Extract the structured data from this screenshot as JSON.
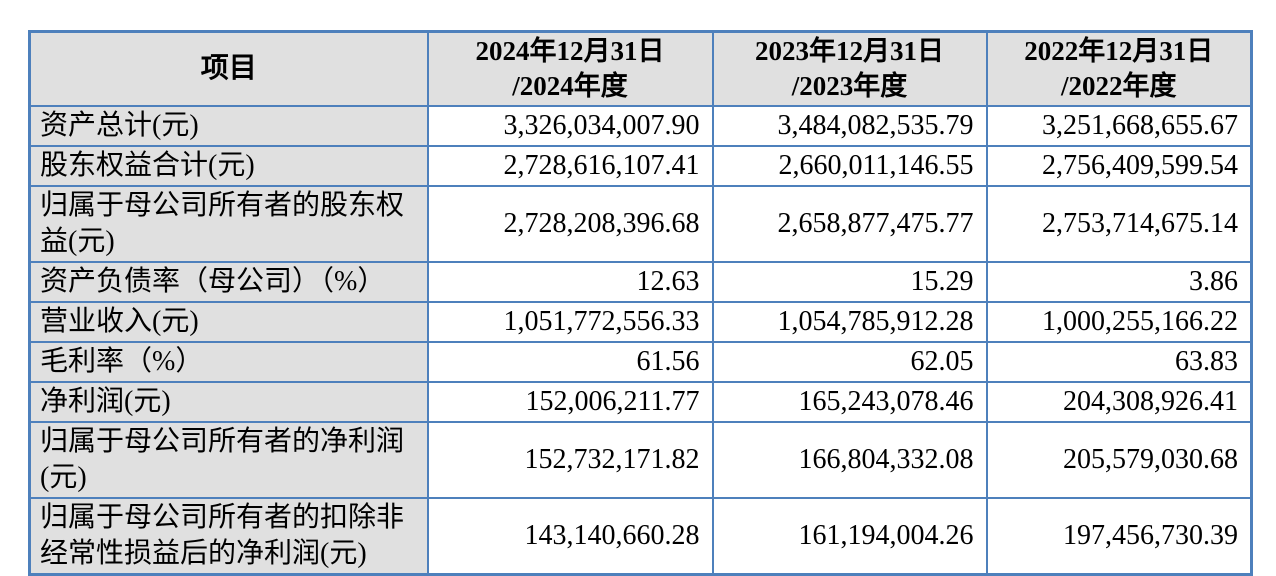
{
  "colors": {
    "table_border": "#4e80bc",
    "shaded_cell_bg": "#e0e0e0",
    "text": "#000000",
    "page_bg": "#ffffff"
  },
  "table": {
    "header": {
      "item_label": "项目",
      "periods": [
        {
          "line1": "2024年12月31日",
          "line2": "/2024年度"
        },
        {
          "line1": "2023年12月31日",
          "line2": "/2023年度"
        },
        {
          "line1": "2022年12月31日",
          "line2": "/2022年度"
        }
      ]
    },
    "rows": [
      {
        "label": "资产总计(元)",
        "values": [
          "3,326,034,007.90",
          "3,484,082,535.79",
          "3,251,668,655.67"
        ]
      },
      {
        "label": "股东权益合计(元)",
        "values": [
          "2,728,616,107.41",
          "2,660,011,146.55",
          "2,756,409,599.54"
        ]
      },
      {
        "label": "归属于母公司所有者的股东权益(元)",
        "values": [
          "2,728,208,396.68",
          "2,658,877,475.77",
          "2,753,714,675.14"
        ]
      },
      {
        "label": "资产负债率（母公司）（%）",
        "values": [
          "12.63",
          "15.29",
          "3.86"
        ]
      },
      {
        "label": "营业收入(元)",
        "values": [
          "1,051,772,556.33",
          "1,054,785,912.28",
          "1,000,255,166.22"
        ]
      },
      {
        "label": "毛利率（%）",
        "values": [
          "61.56",
          "62.05",
          "63.83"
        ]
      },
      {
        "label": "净利润(元)",
        "values": [
          "152,006,211.77",
          "165,243,078.46",
          "204,308,926.41"
        ]
      },
      {
        "label": "归属于母公司所有者的净利润(元)",
        "values": [
          "152,732,171.82",
          "166,804,332.08",
          "205,579,030.68"
        ]
      },
      {
        "label": "归属于母公司所有者的扣除非经常性损益后的净利润(元)",
        "values": [
          "143,140,660.28",
          "161,194,004.26",
          "197,456,730.39"
        ]
      }
    ]
  }
}
